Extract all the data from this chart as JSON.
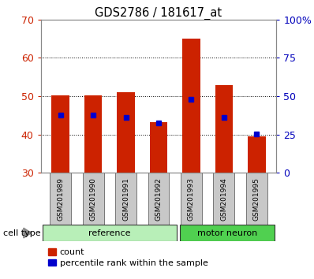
{
  "title": "GDS2786 / 181617_at",
  "categories": [
    "GSM201989",
    "GSM201990",
    "GSM201991",
    "GSM201992",
    "GSM201993",
    "GSM201994",
    "GSM201995"
  ],
  "red_bar_tops": [
    50.2,
    50.2,
    51.0,
    43.2,
    65.0,
    53.0,
    39.5
  ],
  "blue_marker_values": [
    45.0,
    45.0,
    44.5,
    43.0,
    49.3,
    44.5,
    40.2
  ],
  "bar_bottom": 30,
  "ylim": [
    30,
    70
  ],
  "y2lim": [
    0,
    100
  ],
  "yticks_left": [
    30,
    40,
    50,
    60,
    70
  ],
  "yticks_right": [
    0,
    25,
    50,
    75,
    100
  ],
  "ytick_labels_right": [
    "0",
    "25",
    "50",
    "75",
    "100%"
  ],
  "grid_values": [
    40,
    50,
    60
  ],
  "bar_color_red": "#cc2200",
  "bar_color_blue": "#0000cc",
  "tick_label_area_color": "#c8c8c8",
  "bg_color": "#ffffff",
  "left_tick_color": "#cc2200",
  "right_tick_color": "#0000bb",
  "bar_width": 0.55,
  "reference_color": "#b8efb8",
  "motor_color": "#50d050",
  "legend_count": "count",
  "legend_percentile": "percentile rank within the sample"
}
